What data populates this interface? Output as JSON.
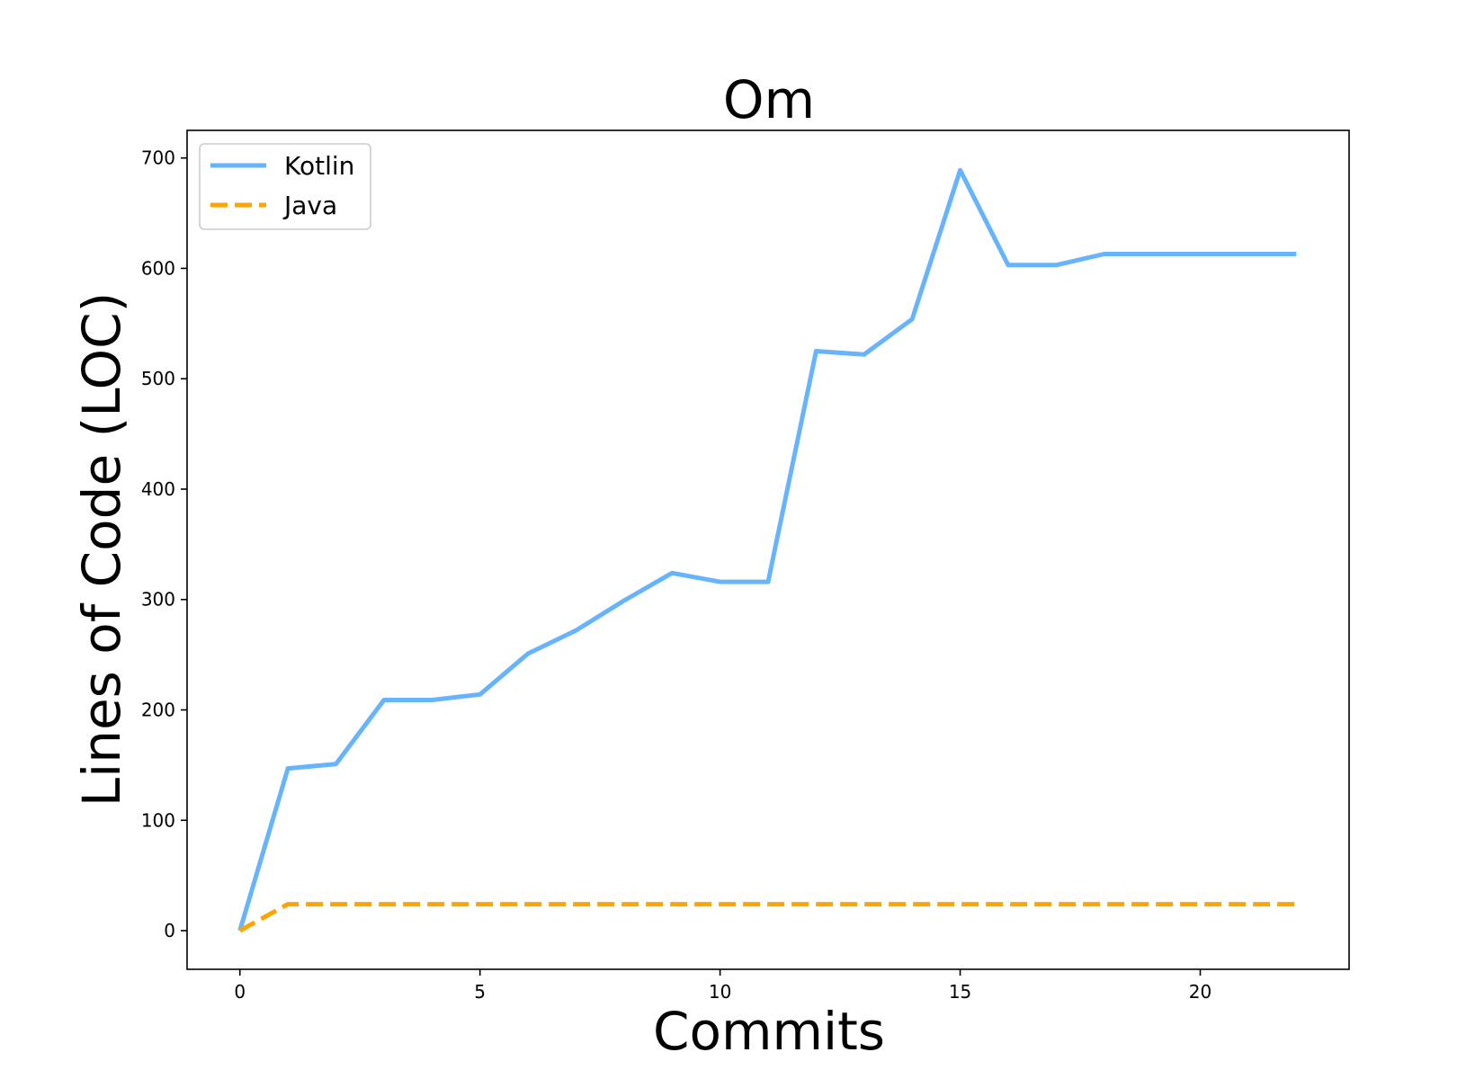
{
  "chart_data": {
    "type": "line",
    "title": "Om",
    "xlabel": "Commits",
    "ylabel": "Lines of Code (LOC)",
    "x": [
      0,
      1,
      2,
      3,
      4,
      5,
      6,
      7,
      8,
      9,
      10,
      11,
      12,
      13,
      14,
      15,
      16,
      17,
      18,
      19,
      20,
      21,
      22
    ],
    "xlim": [
      -1.1,
      23.1
    ],
    "ylim": [
      -35,
      725
    ],
    "xticks": [
      0,
      5,
      10,
      15,
      20
    ],
    "yticks": [
      0,
      100,
      200,
      300,
      400,
      500,
      600,
      700
    ],
    "grid": false,
    "legend_position": "upper-left",
    "series": [
      {
        "name": "Kotlin",
        "color": "#66b3ff",
        "style": "solid",
        "values": [
          0,
          147,
          151,
          209,
          209,
          214,
          251,
          272,
          299,
          324,
          316,
          316,
          525,
          522,
          554,
          689,
          603,
          603,
          613,
          613,
          613,
          613,
          613
        ]
      },
      {
        "name": "Java",
        "color": "#ffa500",
        "style": "dashed",
        "values": [
          0,
          24,
          24,
          24,
          24,
          24,
          24,
          24,
          24,
          24,
          24,
          24,
          24,
          24,
          24,
          24,
          24,
          24,
          24,
          24,
          24,
          24,
          24
        ]
      }
    ]
  }
}
